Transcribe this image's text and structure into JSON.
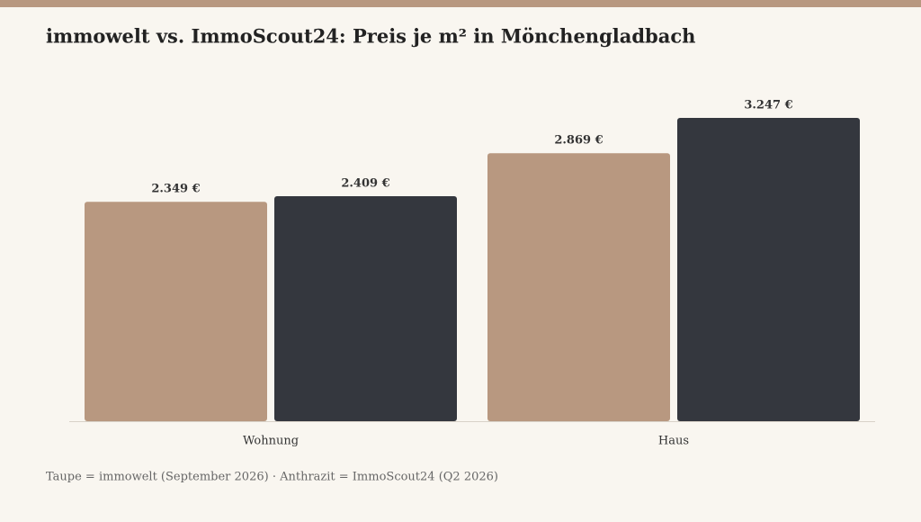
{
  "chart_data": {
    "type": "bar",
    "title": "immowelt vs. ImmoScout24: Preis je m² in Mönchengladbach",
    "categories": [
      "Wohnung",
      "Haus"
    ],
    "series": [
      {
        "color": "#b89880",
        "values": [
          2349,
          2869
        ],
        "value_labels": [
          "2.349 €",
          "2.869 €"
        ]
      },
      {
        "color": "#34373e",
        "values": [
          2409,
          3247
        ],
        "value_labels": [
          "2.409 €",
          "3.247 €"
        ]
      }
    ],
    "note": "Taupe = immowelt (September 2026) · Anthrazit = ImmoScout24 (Q2 2026)"
  }
}
